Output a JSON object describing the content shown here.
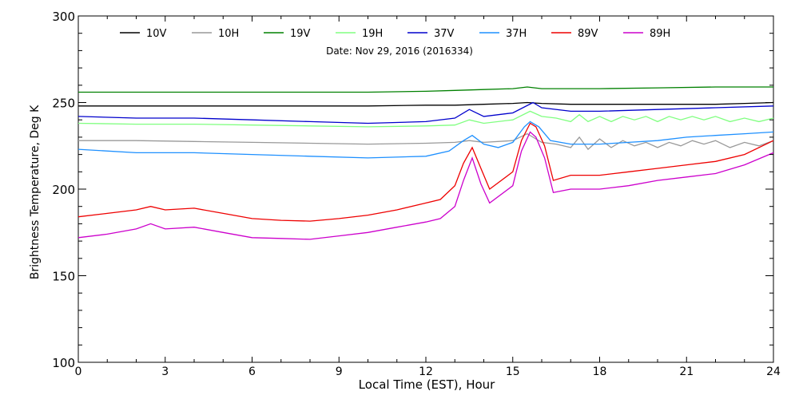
{
  "chart_data": {
    "type": "line",
    "title": "Date: Nov 29, 2016 (2016334)",
    "xlabel": "Local Time (EST), Hour",
    "ylabel": "Brightness Temperature, Deg  K",
    "xlim": [
      0,
      24
    ],
    "ylim": [
      100,
      300
    ],
    "xticks": [
      0,
      3,
      6,
      9,
      12,
      15,
      18,
      21,
      24
    ],
    "yticks": [
      100,
      150,
      200,
      250,
      300
    ],
    "grid": false,
    "legend_position": "top",
    "series": [
      {
        "name": "10V",
        "color": "#000000",
        "x": [
          0,
          2,
          4,
          6,
          8,
          10,
          12,
          13,
          14,
          15,
          15.5,
          16,
          17,
          18,
          19,
          20,
          21,
          22,
          23,
          24
        ],
        "y": [
          248,
          248,
          248,
          248,
          248,
          248,
          248.5,
          248.5,
          249,
          249.5,
          250,
          249.5,
          249,
          249,
          249,
          249,
          249,
          249,
          249.5,
          250
        ]
      },
      {
        "name": "10H",
        "color": "#999999",
        "x": [
          0,
          2,
          4,
          6,
          8,
          10,
          12,
          13,
          13.5,
          14,
          15,
          15.5,
          16,
          16.5,
          17,
          17.3,
          17.6,
          18,
          18.4,
          18.8,
          19.2,
          19.6,
          20,
          20.4,
          20.8,
          21.2,
          21.6,
          22,
          22.5,
          23,
          23.5,
          24
        ],
        "y": [
          228,
          228,
          227.5,
          227,
          226.5,
          226,
          226.5,
          227,
          228,
          227,
          228,
          232,
          227,
          226,
          224,
          230,
          223,
          229,
          224,
          228,
          225,
          227,
          224,
          227,
          225,
          228,
          226,
          228,
          224,
          227,
          225,
          228
        ]
      },
      {
        "name": "19V",
        "color": "#008000",
        "x": [
          0,
          2,
          4,
          6,
          8,
          10,
          12,
          13,
          14,
          15,
          15.5,
          16,
          17,
          18,
          20,
          22,
          24
        ],
        "y": [
          256,
          256,
          256,
          256,
          256,
          256,
          256.5,
          257,
          257.5,
          258,
          259,
          258,
          258,
          258,
          258.5,
          259,
          259
        ]
      },
      {
        "name": "19H",
        "color": "#80ff80",
        "x": [
          0,
          2,
          4,
          6,
          8,
          10,
          12,
          13,
          13.5,
          14,
          15,
          15.6,
          16,
          16.5,
          17,
          17.3,
          17.6,
          18,
          18.4,
          18.8,
          19.2,
          19.6,
          20,
          20.4,
          20.8,
          21.2,
          21.6,
          22,
          22.5,
          23,
          23.5,
          24
        ],
        "y": [
          238,
          237.5,
          237.5,
          237,
          236.5,
          236,
          236.5,
          237,
          240,
          238,
          240,
          245,
          242,
          241,
          239,
          243,
          239,
          242,
          239,
          242,
          240,
          242,
          239,
          242,
          240,
          242,
          240,
          242,
          239,
          241,
          239,
          241
        ]
      },
      {
        "name": "37V",
        "color": "#0000cc",
        "x": [
          0,
          2,
          4,
          6,
          8,
          10,
          12,
          13,
          13.5,
          14,
          15,
          15.7,
          16,
          17,
          18,
          20,
          22,
          24
        ],
        "y": [
          242,
          241,
          241,
          240,
          239,
          238,
          239,
          241,
          246,
          242,
          244,
          250,
          247,
          245,
          245,
          246,
          247,
          248
        ]
      },
      {
        "name": "37H",
        "color": "#1e90ff",
        "x": [
          0,
          2,
          4,
          6,
          8,
          10,
          12,
          12.8,
          13.3,
          13.6,
          14,
          14.5,
          15,
          15.4,
          15.6,
          15.9,
          16.3,
          17,
          18,
          19,
          20,
          21,
          22,
          23,
          24
        ],
        "y": [
          223,
          221,
          221,
          220,
          219,
          218,
          219,
          222,
          228,
          231,
          226,
          224,
          227,
          236,
          239,
          236,
          228,
          226,
          226,
          227,
          228,
          230,
          231,
          232,
          233
        ]
      },
      {
        "name": "89V",
        "color": "#ee0000",
        "x": [
          0,
          1,
          2,
          2.5,
          3,
          4,
          5,
          6,
          7,
          8,
          9,
          10,
          11,
          12,
          12.5,
          13,
          13.3,
          13.6,
          13.9,
          14.2,
          15,
          15.3,
          15.6,
          15.8,
          16.1,
          16.4,
          17,
          18,
          19,
          20,
          21,
          22,
          23,
          24
        ],
        "y": [
          184,
          186,
          188,
          190,
          188,
          189,
          186,
          183,
          182,
          181.5,
          183,
          185,
          188,
          192,
          194,
          202,
          215,
          224,
          212,
          200,
          210,
          228,
          238,
          236,
          225,
          205,
          208,
          208,
          210,
          212,
          214,
          216,
          220,
          228
        ]
      },
      {
        "name": "89H",
        "color": "#cc00cc",
        "x": [
          0,
          1,
          2,
          2.5,
          3,
          4,
          5,
          6,
          7,
          8,
          9,
          10,
          11,
          12,
          12.5,
          13,
          13.3,
          13.6,
          13.9,
          14.2,
          15,
          15.3,
          15.6,
          15.8,
          16.1,
          16.4,
          17,
          18,
          19,
          20,
          21,
          22,
          23,
          24
        ],
        "y": [
          172,
          174,
          177,
          180,
          177,
          178,
          175,
          172,
          171.5,
          171,
          173,
          175,
          178,
          181,
          183,
          190,
          205,
          218,
          203,
          192,
          202,
          222,
          233,
          230,
          218,
          198,
          200,
          200,
          202,
          205,
          207,
          209,
          214,
          221
        ]
      }
    ]
  }
}
